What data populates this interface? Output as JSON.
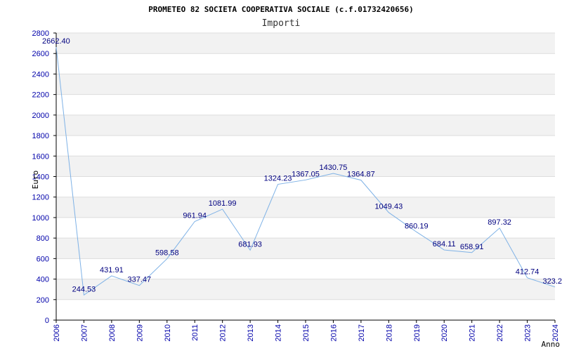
{
  "chart_data": {
    "type": "line",
    "title": "PROMETEO 82 SOCIETA COOPERATIVA SOCIALE (c.f.01732420656)",
    "subtitle": "Importi",
    "xlabel": "Anno",
    "ylabel": "Euro",
    "ylim": [
      0,
      2800
    ],
    "yticks": [
      "0",
      "200",
      "400",
      "600",
      "800",
      "1000",
      "1200",
      "1400",
      "1600",
      "1800",
      "2000",
      "2200",
      "2400",
      "2600",
      "2800"
    ],
    "categories": [
      "2006",
      "2007",
      "2008",
      "2009",
      "2010",
      "2011",
      "2012",
      "2013",
      "2014",
      "2015",
      "2016",
      "2017",
      "2018",
      "2019",
      "2020",
      "2021",
      "2022",
      "2023",
      "2024"
    ],
    "values": [
      2662.4,
      244.53,
      431.91,
      337.47,
      598.58,
      961.94,
      1081.99,
      681.93,
      1324.23,
      1367.05,
      1430.75,
      1364.87,
      1049.43,
      860.19,
      684.11,
      658.91,
      897.32,
      412.74,
      323.2
    ],
    "data_labels": [
      "2662.40",
      "244.53",
      "431.91",
      "337.47",
      "598.58",
      "961.94",
      "1081.99",
      "681.93",
      "1324.23",
      "1367.05",
      "1430.75",
      "1364.87",
      "1049.43",
      "860.19",
      "684.11",
      "658.91",
      "897.32",
      "412.74",
      "323.2"
    ],
    "grid": true,
    "line_color": "#7fb2e6",
    "band_color": "#f2f2f2",
    "grid_color": "#dddddd",
    "tick_color": "#0000aa"
  }
}
